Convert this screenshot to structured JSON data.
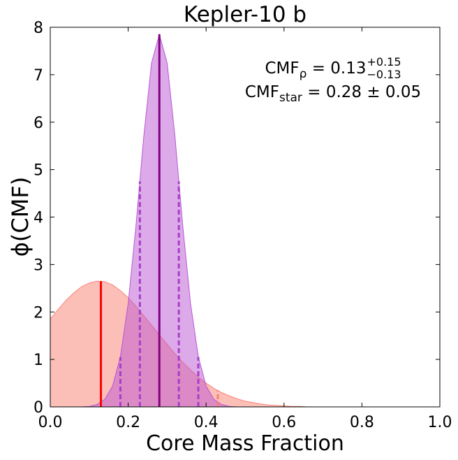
{
  "chart_data": {
    "type": "area",
    "title": "Kepler-10 b",
    "x_label": "Core Mass Fraction",
    "y_label": "ϕ(CMF)",
    "xlim": [
      0,
      1
    ],
    "ylim": [
      0,
      8
    ],
    "xticks": [
      {
        "value": 0,
        "label": "0.0"
      },
      0.2,
      0.4,
      0.6,
      0.8,
      {
        "value": 1,
        "label": "1.0"
      }
    ],
    "yticks": [
      0,
      1,
      2,
      3,
      4,
      5,
      6,
      7,
      8
    ],
    "x": [
      0,
      0.02,
      0.04,
      0.06,
      0.08,
      0.1,
      0.12,
      0.14,
      0.16,
      0.18,
      0.2,
      0.22,
      0.24,
      0.26,
      0.28,
      0.3,
      0.32,
      0.34,
      0.36,
      0.38,
      0.4,
      0.42,
      0.44,
      0.46,
      0.48,
      0.5,
      0.52,
      0.54,
      0.56,
      0.58,
      0.6,
      0.62,
      0.64,
      0.66,
      0.68,
      0.7,
      0.72,
      0.74,
      0.76,
      0.78,
      0.8,
      0.82,
      0.84,
      0.86,
      0.88,
      0.9,
      0.92,
      0.94,
      0.96,
      0.98,
      1
    ],
    "series": [
      {
        "color": "#fa8072",
        "line_color": "#ff0000",
        "dash_color": "#fa8072",
        "values": [
          1.85,
          2.05,
          2.24,
          2.4,
          2.53,
          2.61,
          2.65,
          2.64,
          2.57,
          2.45,
          2.3,
          2.12,
          1.92,
          1.72,
          1.52,
          1.32,
          1.12,
          0.94,
          0.78,
          0.63,
          0.5,
          0.39,
          0.3,
          0.23,
          0.17,
          0.12,
          0.09,
          0.06,
          0.04,
          0.03,
          0.02,
          0.01,
          0.01,
          0,
          0,
          0,
          0,
          0,
          0,
          0,
          0,
          0,
          0,
          0,
          0,
          0,
          0,
          0,
          0,
          0,
          0
        ],
        "median": {
          "x": 0.13,
          "y": 2.65
        },
        "bounds": [
          {
            "x": 0.28,
            "y": 1.55
          },
          {
            "x": 0.43,
            "y": 0.35
          }
        ]
      },
      {
        "color": "#ba55d3",
        "line_color": "#800080",
        "dash_color": "#a83ec8",
        "values": [
          0,
          0,
          0,
          0,
          0,
          0.01,
          0.05,
          0.16,
          0.44,
          1.06,
          2.18,
          3.82,
          5.7,
          7.25,
          7.85,
          7.25,
          5.7,
          3.82,
          2.18,
          1.06,
          0.44,
          0.16,
          0.05,
          0.01,
          0,
          0,
          0,
          0,
          0,
          0,
          0,
          0,
          0,
          0,
          0,
          0,
          0,
          0,
          0,
          0,
          0,
          0,
          0,
          0,
          0,
          0,
          0,
          0,
          0,
          0,
          0
        ],
        "median": {
          "x": 0.28,
          "y": 7.85
        },
        "bounds": [
          {
            "x": 0.23,
            "y": 4.75
          },
          {
            "x": 0.33,
            "y": 4.75
          },
          {
            "x": 0.18,
            "y": 1.05
          },
          {
            "x": 0.38,
            "y": 1.05
          }
        ]
      }
    ],
    "annotations": [
      {
        "text": "CMF",
        "sub": "ρ",
        "value": " = 0.13",
        "sup": "+0.15",
        "subval": "−0.13",
        "color": "#fa8072"
      },
      {
        "text": "CMF",
        "sub": "star",
        "value": " = 0.28 ± 0.05",
        "color": "#ba55d3"
      }
    ]
  }
}
